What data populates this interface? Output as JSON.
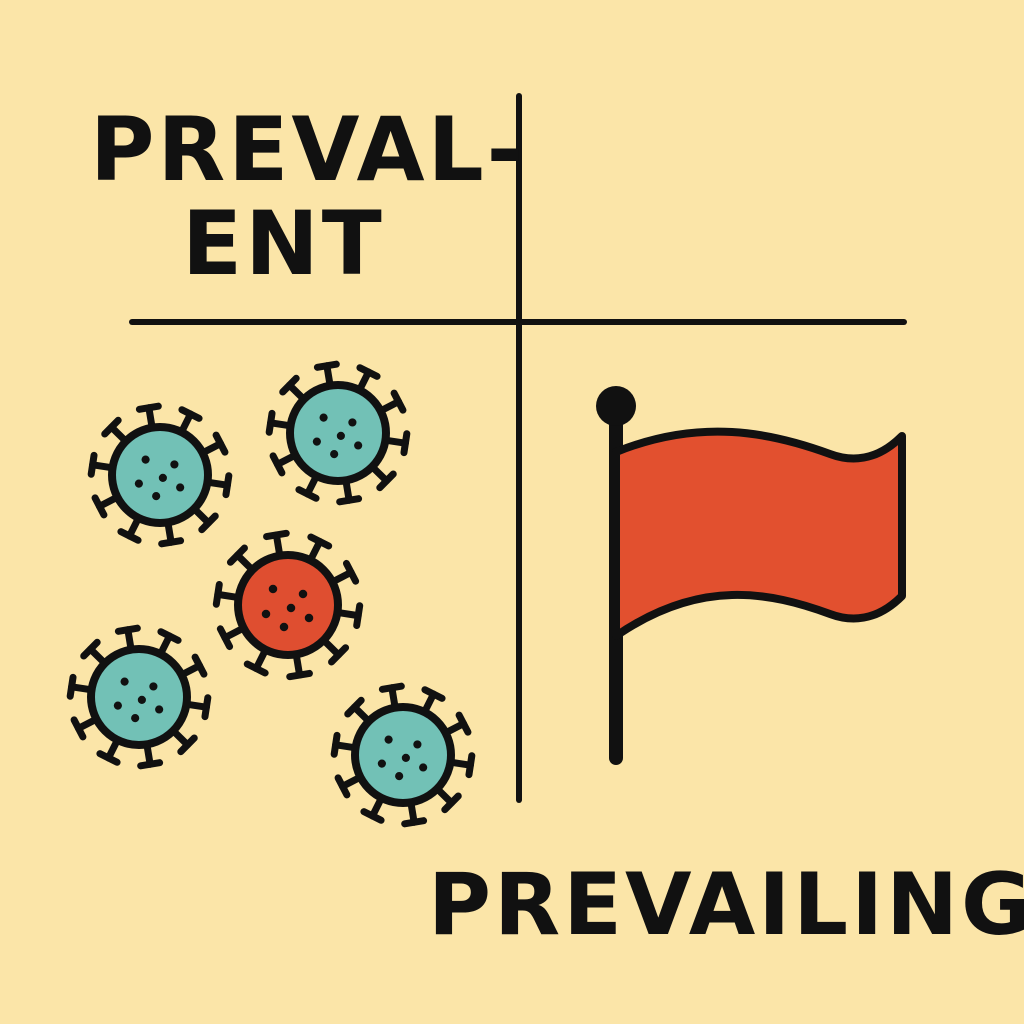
{
  "labels": {
    "prevalent_line1": "PREVAL-",
    "prevalent_line2": "ENT",
    "prevailing": "PREVAILING"
  },
  "colors": {
    "background": "#fbe5a8",
    "ink": "#111111",
    "virus_teal": "#72c1b6",
    "virus_red": "#df4e30",
    "flag_red": "#e2502f"
  },
  "icons": {
    "virus": "virus-icon",
    "flag": "flag-icon"
  }
}
